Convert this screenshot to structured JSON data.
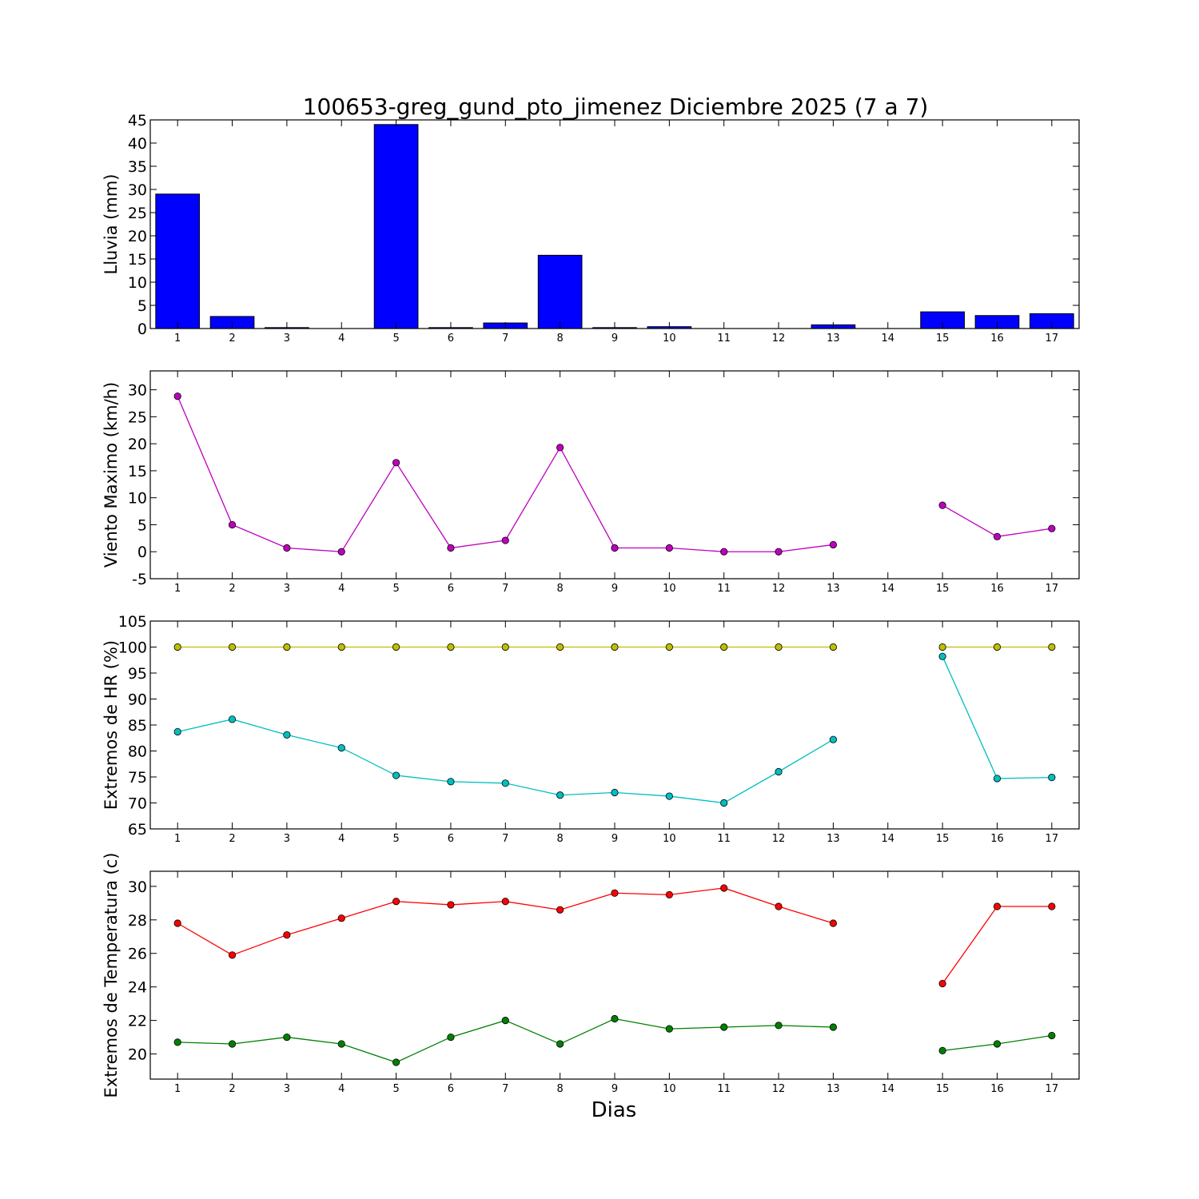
{
  "figure": {
    "title": "100653-greg_gund_pto_jimenez Diciembre 2025  (7 a 7)",
    "xlabel": "Dias"
  },
  "chart_data": [
    {
      "type": "bar",
      "ylabel": "Lluvia (mm)",
      "categories": [
        1,
        2,
        3,
        4,
        5,
        6,
        7,
        8,
        9,
        10,
        11,
        12,
        13,
        14,
        15,
        16,
        17
      ],
      "xlim": [
        0.5,
        17.5
      ],
      "ylim": [
        0,
        45
      ],
      "yticks": [
        0,
        5,
        10,
        15,
        20,
        25,
        30,
        35,
        40,
        45
      ],
      "series": [
        {
          "color": "#0000ff",
          "values": [
            29.0,
            2.6,
            0.2,
            0.0,
            44.0,
            0.2,
            1.2,
            15.8,
            0.2,
            0.4,
            0.0,
            0.0,
            0.8,
            0.0,
            3.6,
            2.8,
            3.2
          ]
        }
      ]
    },
    {
      "type": "line",
      "ylabel": "Viento Maximo (km/h)",
      "x": [
        1,
        2,
        3,
        4,
        5,
        6,
        7,
        8,
        9,
        10,
        11,
        12,
        13,
        14,
        15,
        16,
        17
      ],
      "xlim": [
        0.5,
        17.5
      ],
      "ylim": [
        -5,
        33.5
      ],
      "yticks": [
        -5,
        0,
        5,
        10,
        15,
        20,
        25,
        30
      ],
      "series": [
        {
          "color": "#bf00bf",
          "values": [
            28.8,
            5.0,
            0.7,
            0.0,
            16.5,
            0.7,
            2.1,
            19.3,
            0.7,
            0.7,
            0.0,
            0.0,
            1.3,
            null,
            8.6,
            2.8,
            4.3
          ]
        }
      ]
    },
    {
      "type": "line",
      "ylabel": "Extremos de HR (%)",
      "x": [
        1,
        2,
        3,
        4,
        5,
        6,
        7,
        8,
        9,
        10,
        11,
        12,
        13,
        14,
        15,
        16,
        17
      ],
      "xlim": [
        0.5,
        17.5
      ],
      "ylim": [
        65,
        105
      ],
      "yticks": [
        65,
        70,
        75,
        80,
        85,
        90,
        95,
        100,
        105
      ],
      "series": [
        {
          "color": "#bfbf00",
          "values": [
            100,
            100,
            100,
            100,
            100,
            100,
            100,
            100,
            100,
            100,
            100,
            100,
            100,
            null,
            100,
            100,
            100
          ]
        },
        {
          "color": "#00bfbf",
          "values": [
            83.7,
            86.1,
            83.1,
            80.6,
            75.3,
            74.1,
            73.8,
            71.5,
            72.0,
            71.3,
            70.0,
            76.0,
            82.2,
            null,
            98.2,
            74.7,
            74.9
          ]
        }
      ]
    },
    {
      "type": "line",
      "ylabel": "Extremos de Temperatura (c)",
      "x": [
        1,
        2,
        3,
        4,
        5,
        6,
        7,
        8,
        9,
        10,
        11,
        12,
        13,
        14,
        15,
        16,
        17
      ],
      "xlim": [
        0.5,
        17.5
      ],
      "ylim": [
        18.5,
        30.9
      ],
      "yticks": [
        20,
        22,
        24,
        26,
        28,
        30
      ],
      "series": [
        {
          "color": "#ff0000",
          "values": [
            27.8,
            25.9,
            27.1,
            28.1,
            29.1,
            28.9,
            29.1,
            28.6,
            29.6,
            29.5,
            29.9,
            28.8,
            27.8,
            null,
            24.2,
            28.8,
            28.8
          ]
        },
        {
          "color": "#008000",
          "values": [
            20.7,
            20.6,
            21.0,
            20.6,
            19.5,
            21.0,
            22.0,
            20.6,
            22.1,
            21.5,
            21.6,
            21.7,
            21.6,
            null,
            20.2,
            20.6,
            21.1
          ]
        }
      ]
    }
  ]
}
